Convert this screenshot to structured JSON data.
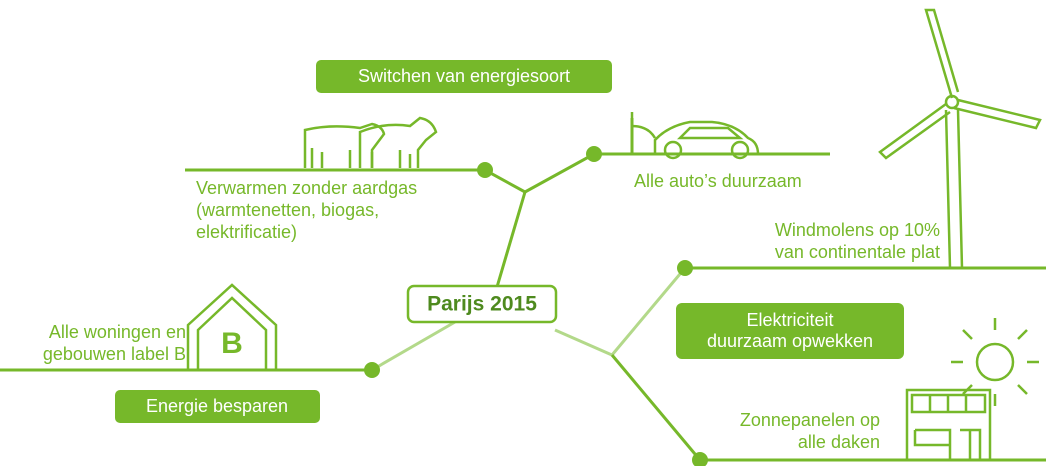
{
  "center": "Parijs 2015",
  "badges": [
    {
      "lines": [
        "Switchen van energiesoort"
      ]
    },
    {
      "lines": [
        "Energie besparen"
      ]
    },
    {
      "lines": [
        "Elektriciteit",
        "duurzaam opwekken"
      ]
    }
  ],
  "labels": [
    {
      "lines": [
        "Verwarmen zonder aardgas",
        "(warmtenetten, biogas,",
        "elektrificatie)"
      ]
    },
    {
      "lines": [
        "Alle auto’s duurzaam"
      ]
    },
    {
      "lines": [
        "Windmolens op 10%",
        "van continentale plat"
      ]
    },
    {
      "lines": [
        "Alle woningen en",
        "gebouwen label B"
      ]
    },
    {
      "lines": [
        "Zonnepanelen op",
        "alle daken"
      ]
    }
  ],
  "house_letter": "B"
}
